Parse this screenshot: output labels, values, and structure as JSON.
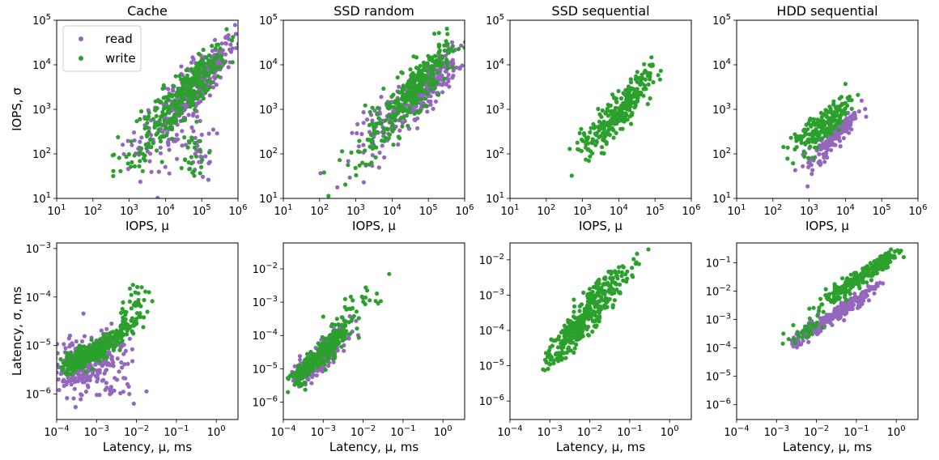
{
  "colors": {
    "read": "#9467bd",
    "write": "#2ca02c"
  },
  "legend": {
    "read": "read",
    "write": "write",
    "placement": "upper-left of first panel"
  },
  "chart_data": [
    {
      "type": "scatter",
      "title": "Cache",
      "xlabel": "IOPS, μ",
      "ylabel": "IOPS, σ",
      "xscale": "log",
      "yscale": "log",
      "xlim": [
        10,
        1000000
      ],
      "ylim": [
        10,
        100000
      ],
      "xticks": [
        {
          "e": "1"
        },
        {
          "e": "2"
        },
        {
          "e": "3"
        },
        {
          "e": "4"
        },
        {
          "e": "5"
        },
        {
          "e": "6"
        }
      ],
      "yticks": [
        {
          "e": "1"
        },
        {
          "e": "2"
        },
        {
          "e": "3"
        },
        {
          "e": "4"
        },
        {
          "e": "5"
        }
      ],
      "series": [
        {
          "name": "read",
          "clusters": [
            {
              "c": [
                100000,
                5000
              ],
              "n": 240,
              "sx": 0.45,
              "sy": 0.45,
              "rho": 0.85
            },
            {
              "c": [
                20000,
                700
              ],
              "n": 120,
              "sx": 0.5,
              "sy": 0.55,
              "rho": 0.6
            },
            {
              "c": [
                100000,
                100
              ],
              "n": 25,
              "sx": 0.2,
              "sy": 0.35,
              "rho": 0.0
            },
            {
              "c": [
                2000,
                150
              ],
              "n": 20,
              "sx": 0.35,
              "sy": 0.3,
              "rho": 0.7
            }
          ]
        },
        {
          "name": "write",
          "clusters": [
            {
              "c": [
                60000,
                3500
              ],
              "n": 220,
              "sx": 0.45,
              "sy": 0.45,
              "rho": 0.85
            },
            {
              "c": [
                10000,
                800
              ],
              "n": 110,
              "sx": 0.5,
              "sy": 0.5,
              "rho": 0.7
            },
            {
              "c": [
                50000,
                80
              ],
              "n": 25,
              "sx": 0.25,
              "sy": 0.35,
              "rho": 0.0
            },
            {
              "c": [
                800,
                60
              ],
              "n": 15,
              "sx": 0.4,
              "sy": 0.3,
              "rho": 0.7
            }
          ]
        }
      ]
    },
    {
      "type": "scatter",
      "title": "SSD random",
      "xlabel": "IOPS, μ",
      "ylabel": "",
      "xscale": "log",
      "yscale": "log",
      "xlim": [
        10,
        1000000
      ],
      "ylim": [
        10,
        100000
      ],
      "xticks": [
        {
          "e": "1"
        },
        {
          "e": "2"
        },
        {
          "e": "3"
        },
        {
          "e": "4"
        },
        {
          "e": "5"
        },
        {
          "e": "6"
        }
      ],
      "yticks": [
        {
          "e": "1"
        },
        {
          "e": "2"
        },
        {
          "e": "3"
        },
        {
          "e": "4"
        },
        {
          "e": "5"
        }
      ],
      "series": [
        {
          "name": "read",
          "clusters": [
            {
              "c": [
                80000,
                3000
              ],
              "n": 250,
              "sx": 0.45,
              "sy": 0.4,
              "rho": 0.8
            },
            {
              "c": [
                8000,
                500
              ],
              "n": 80,
              "sx": 0.5,
              "sy": 0.45,
              "rho": 0.7
            }
          ]
        },
        {
          "name": "write",
          "clusters": [
            {
              "c": [
                60000,
                4000
              ],
              "n": 220,
              "sx": 0.45,
              "sy": 0.45,
              "rho": 0.8
            },
            {
              "c": [
                10000,
                700
              ],
              "n": 90,
              "sx": 0.5,
              "sy": 0.45,
              "rho": 0.75
            },
            {
              "c": [
                1500,
                100
              ],
              "n": 20,
              "sx": 0.35,
              "sy": 0.35,
              "rho": 0.7
            }
          ]
        }
      ]
    },
    {
      "type": "scatter",
      "title": "SSD sequential",
      "xlabel": "IOPS, μ",
      "ylabel": "",
      "xscale": "log",
      "yscale": "log",
      "xlim": [
        10,
        1000000
      ],
      "ylim": [
        10,
        100000
      ],
      "xticks": [
        {
          "e": "1"
        },
        {
          "e": "2"
        },
        {
          "e": "3"
        },
        {
          "e": "4"
        },
        {
          "e": "5"
        },
        {
          "e": "6"
        }
      ],
      "yticks": [
        {
          "e": "1"
        },
        {
          "e": "2"
        },
        {
          "e": "3"
        },
        {
          "e": "4"
        },
        {
          "e": "5"
        }
      ],
      "series": [
        {
          "name": "read",
          "clusters": []
        },
        {
          "name": "write",
          "clusters": [
            {
              "c": [
                20000,
                1500
              ],
              "n": 130,
              "sx": 0.3,
              "sy": 0.35,
              "rho": 0.75
            },
            {
              "c": [
                5000,
                500
              ],
              "n": 110,
              "sx": 0.3,
              "sy": 0.35,
              "rho": 0.7
            },
            {
              "c": [
                2000,
                250
              ],
              "n": 30,
              "sx": 0.25,
              "sy": 0.25,
              "rho": 0.6
            }
          ]
        }
      ]
    },
    {
      "type": "scatter",
      "title": "HDD sequential",
      "xlabel": "IOPS, μ",
      "ylabel": "",
      "xscale": "log",
      "yscale": "log",
      "xlim": [
        10,
        1000000
      ],
      "ylim": [
        10,
        100000
      ],
      "xticks": [
        {
          "e": "1"
        },
        {
          "e": "2"
        },
        {
          "e": "3"
        },
        {
          "e": "4"
        },
        {
          "e": "5"
        },
        {
          "e": "6"
        }
      ],
      "yticks": [
        {
          "e": "1"
        },
        {
          "e": "2"
        },
        {
          "e": "3"
        },
        {
          "e": "4"
        },
        {
          "e": "5"
        }
      ],
      "series": [
        {
          "name": "read",
          "clusters": [
            {
              "c": [
                6000,
                300
              ],
              "n": 160,
              "sx": 0.28,
              "sy": 0.28,
              "rho": 0.85
            },
            {
              "c": [
                1200,
                80
              ],
              "n": 20,
              "sx": 0.2,
              "sy": 0.25,
              "rho": 0.6
            }
          ]
        },
        {
          "name": "write",
          "clusters": [
            {
              "c": [
                3000,
                500
              ],
              "n": 150,
              "sx": 0.33,
              "sy": 0.3,
              "rho": 0.8
            },
            {
              "c": [
                800,
                250
              ],
              "n": 40,
              "sx": 0.25,
              "sy": 0.2,
              "rho": 0.6
            }
          ]
        }
      ]
    },
    {
      "type": "scatter",
      "title": "",
      "xlabel": "Latency, μ, ms",
      "ylabel": "Latency, σ, ms",
      "xscale": "log",
      "yscale": "log",
      "xlim": [
        0.0001,
        3.5
      ],
      "ylim": [
        3e-07,
        0.0013
      ],
      "xticks": [
        {
          "e": "−4"
        },
        {
          "e": "−3"
        },
        {
          "e": "−2"
        },
        {
          "e": "−1"
        },
        {
          "e": "0"
        }
      ],
      "yticks": [
        {
          "e": "−6"
        },
        {
          "e": "−5"
        },
        {
          "e": "−4"
        },
        {
          "e": "−3"
        }
      ],
      "series": [
        {
          "name": "read",
          "clusters": [
            {
              "c": [
                0.00035,
                4e-06
              ],
              "n": 220,
              "sx": 0.35,
              "sy": 0.3,
              "rho": 0.3
            },
            {
              "c": [
                0.002,
                2e-06
              ],
              "n": 50,
              "sx": 0.4,
              "sy": 0.3,
              "rho": 0.0
            },
            {
              "c": [
                0.0015,
                8e-06
              ],
              "n": 80,
              "sx": 0.3,
              "sy": 0.25,
              "rho": 0.6
            }
          ]
        },
        {
          "name": "write",
          "clusters": [
            {
              "c": [
                0.0005,
                6e-06
              ],
              "n": 260,
              "sx": 0.3,
              "sy": 0.15,
              "rho": 0.7
            },
            {
              "c": [
                0.003,
                1.5e-05
              ],
              "n": 120,
              "sx": 0.3,
              "sy": 0.2,
              "rho": 0.8
            },
            {
              "c": [
                0.01,
                6e-05
              ],
              "n": 40,
              "sx": 0.25,
              "sy": 0.25,
              "rho": 0.6
            }
          ]
        }
      ]
    },
    {
      "type": "scatter",
      "title": "",
      "xlabel": "Latency, μ, ms",
      "ylabel": "",
      "xscale": "log",
      "yscale": "log",
      "xlim": [
        0.0001,
        3.5
      ],
      "ylim": [
        3e-07,
        0.06
      ],
      "xticks": [
        {
          "e": "−4"
        },
        {
          "e": "−3"
        },
        {
          "e": "−2"
        },
        {
          "e": "−1"
        },
        {
          "e": "0"
        }
      ],
      "yticks": [
        {
          "e": "−6"
        },
        {
          "e": "−5"
        },
        {
          "e": "−4"
        },
        {
          "e": "−3"
        },
        {
          "e": "−2"
        }
      ],
      "series": [
        {
          "name": "read",
          "clusters": [
            {
              "c": [
                0.0003,
                8e-06
              ],
              "n": 100,
              "sx": 0.15,
              "sy": 0.2,
              "rho": 0.6
            },
            {
              "c": [
                0.0012,
                3e-05
              ],
              "n": 180,
              "sx": 0.25,
              "sy": 0.35,
              "rho": 0.8
            }
          ]
        },
        {
          "name": "write",
          "clusters": [
            {
              "c": [
                0.0003,
                8e-06
              ],
              "n": 110,
              "sx": 0.15,
              "sy": 0.2,
              "rho": 0.6
            },
            {
              "c": [
                0.0015,
                5e-05
              ],
              "n": 200,
              "sx": 0.28,
              "sy": 0.4,
              "rho": 0.85
            },
            {
              "c": [
                0.008,
                0.001
              ],
              "n": 25,
              "sx": 0.4,
              "sy": 0.4,
              "rho": 0.8
            }
          ]
        }
      ]
    },
    {
      "type": "scatter",
      "title": "",
      "xlabel": "Latency, μ, ms",
      "ylabel": "",
      "xscale": "log",
      "yscale": "log",
      "xlim": [
        0.0001,
        3.5
      ],
      "ylim": [
        3e-07,
        0.03
      ],
      "xticks": [
        {
          "e": "−4"
        },
        {
          "e": "−3"
        },
        {
          "e": "−2"
        },
        {
          "e": "−1"
        },
        {
          "e": "0"
        }
      ],
      "yticks": [
        {
          "e": "−6"
        },
        {
          "e": "−5"
        },
        {
          "e": "−4"
        },
        {
          "e": "−3"
        },
        {
          "e": "−2"
        }
      ],
      "series": [
        {
          "name": "read",
          "clusters": []
        },
        {
          "name": "write",
          "clusters": [
            {
              "c": [
                0.006,
                0.00015
              ],
              "n": 240,
              "sx": 0.35,
              "sy": 0.4,
              "rho": 0.85
            },
            {
              "c": [
                0.03,
                0.002
              ],
              "n": 110,
              "sx": 0.4,
              "sy": 0.35,
              "rho": 0.85
            },
            {
              "c": [
                0.0015,
                2e-05
              ],
              "n": 40,
              "sx": 0.2,
              "sy": 0.2,
              "rho": 0.7
            }
          ]
        }
      ]
    },
    {
      "type": "scatter",
      "title": "",
      "xlabel": "Latency, μ, ms",
      "ylabel": "",
      "xscale": "log",
      "yscale": "log",
      "xlim": [
        0.0001,
        3.5
      ],
      "ylim": [
        3e-07,
        0.5
      ],
      "xticks": [
        {
          "e": "−4"
        },
        {
          "e": "−3"
        },
        {
          "e": "−2"
        },
        {
          "e": "−1"
        },
        {
          "e": "0"
        }
      ],
      "yticks": [
        {
          "e": "−6"
        },
        {
          "e": "−5"
        },
        {
          "e": "−4"
        },
        {
          "e": "−3"
        },
        {
          "e": "−2"
        },
        {
          "e": "−1"
        }
      ],
      "series": [
        {
          "name": "read",
          "clusters": [
            {
              "c": [
                0.04,
                0.002
              ],
              "n": 200,
              "sx": 0.45,
              "sy": 0.45,
              "rho": 0.95
            },
            {
              "c": [
                0.005,
                0.0003
              ],
              "n": 60,
              "sx": 0.25,
              "sy": 0.25,
              "rho": 0.8
            }
          ]
        },
        {
          "name": "write",
          "clusters": [
            {
              "c": [
                0.08,
                0.02
              ],
              "n": 220,
              "sx": 0.45,
              "sy": 0.45,
              "rho": 0.95
            },
            {
              "c": [
                0.5,
                0.12
              ],
              "n": 60,
              "sx": 0.25,
              "sy": 0.25,
              "rho": 0.8
            },
            {
              "c": [
                0.005,
                0.0004
              ],
              "n": 30,
              "sx": 0.25,
              "sy": 0.25,
              "rho": 0.8
            }
          ]
        }
      ]
    }
  ]
}
